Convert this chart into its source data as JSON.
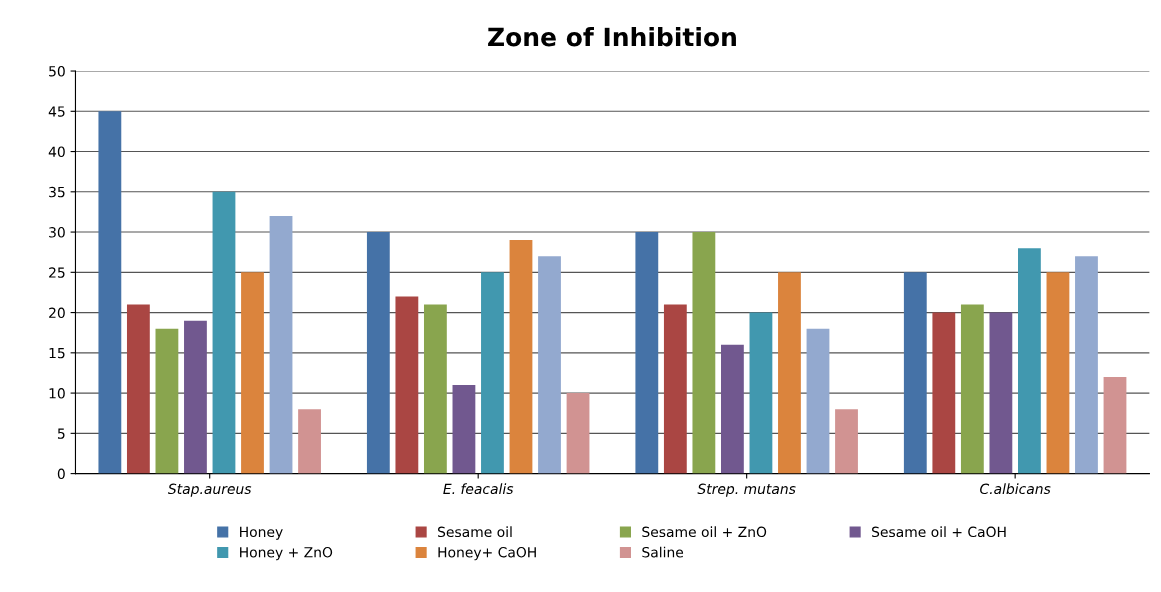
{
  "chart_data": {
    "type": "bar",
    "title": "Zone of Inhibition",
    "categories": [
      "Stap.aureus",
      "E. feacalis",
      "Strep. mutans",
      "C.albicans"
    ],
    "series": [
      {
        "name": "Honey",
        "color": "#4572a7",
        "values": [
          45,
          30,
          30,
          25
        ]
      },
      {
        "name": "Sesame oil",
        "color": "#aa4643",
        "values": [
          21,
          22,
          21,
          20
        ]
      },
      {
        "name": "Sesame oil + ZnO",
        "color": "#89a54e",
        "values": [
          18,
          21,
          30,
          21
        ]
      },
      {
        "name": "Sesame oil + CaOH",
        "color": "#71588f",
        "values": [
          19,
          11,
          16,
          20
        ]
      },
      {
        "name": "Honey + ZnO",
        "color": "#4198af",
        "values": [
          35,
          25,
          20,
          28
        ]
      },
      {
        "name": "Honey+ CaOH",
        "color": "#db843d",
        "values": [
          25,
          29,
          25,
          25
        ]
      },
      {
        "color": "#93a9cf",
        "values": [
          32,
          27,
          18,
          27
        ]
      },
      {
        "name": "Saline",
        "color": "#d19392",
        "values": [
          8,
          10,
          8,
          12
        ]
      }
    ],
    "ylim": [
      0,
      50
    ],
    "yticks": [
      0,
      5,
      10,
      15,
      20,
      25,
      30,
      35,
      40,
      45,
      50
    ],
    "grid": "y",
    "legend": "bottom"
  }
}
